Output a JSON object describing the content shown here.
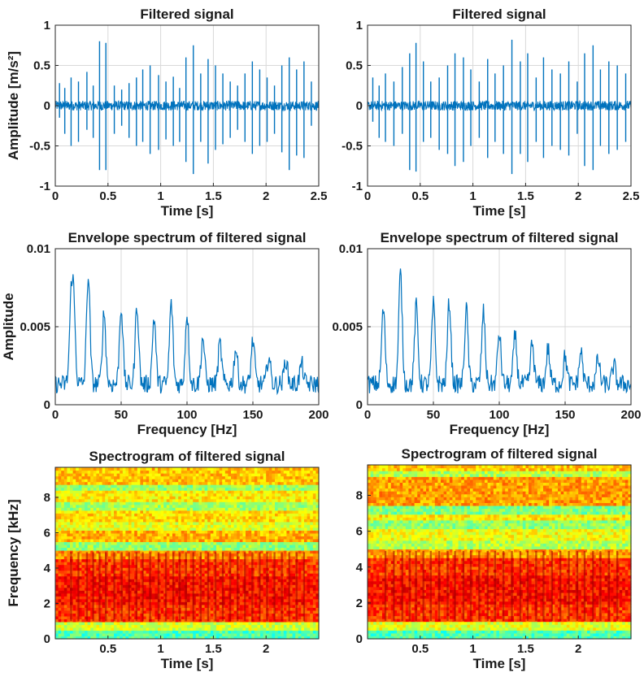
{
  "colors": {
    "line": "#0072BD",
    "axis": "#262626",
    "grid": "#d9d9d9"
  },
  "chart_data": [
    {
      "type": "line",
      "id": "p1",
      "title": "Filtered signal",
      "xlabel": "Time [s]",
      "ylabel": "Amplitude [m/s²]",
      "xlim": [
        0,
        2.5
      ],
      "ylim": [
        -1,
        1
      ],
      "xticks": [
        0,
        0.5,
        1,
        1.5,
        2,
        2.5
      ],
      "xtick_labels": [
        "0",
        "0.5",
        "1",
        "1.5",
        "2",
        "2.5"
      ],
      "yticks": [
        -1,
        -0.5,
        0,
        0.5,
        1
      ],
      "ytick_labels": [
        "-1",
        "-0.5",
        "0",
        "0.5",
        "1"
      ],
      "grid": true,
      "noise_level": 0.06,
      "impulses": {
        "t": [
          0.04,
          0.09,
          0.15,
          0.22,
          0.3,
          0.36,
          0.42,
          0.48,
          0.56,
          0.63,
          0.7,
          0.77,
          0.83,
          0.9,
          0.98,
          1.05,
          1.12,
          1.18,
          1.24,
          1.31,
          1.38,
          1.45,
          1.52,
          1.59,
          1.66,
          1.73,
          1.8,
          1.87,
          1.94,
          2.01,
          2.08,
          2.15,
          2.22,
          2.29,
          2.36,
          2.43
        ],
        "pos": [
          0.28,
          0.22,
          0.35,
          0.3,
          0.42,
          0.25,
          0.8,
          0.78,
          0.25,
          0.2,
          0.28,
          0.35,
          0.45,
          0.5,
          0.38,
          0.3,
          0.36,
          0.22,
          0.6,
          0.75,
          0.4,
          0.58,
          0.5,
          0.4,
          0.3,
          0.25,
          0.4,
          0.55,
          0.45,
          0.35,
          0.25,
          0.5,
          0.6,
          0.45,
          0.55,
          0.3
        ],
        "neg": [
          -0.15,
          -0.35,
          -0.5,
          -0.45,
          -0.3,
          -0.4,
          -0.8,
          -0.8,
          -0.35,
          -0.25,
          -0.4,
          -0.5,
          -0.45,
          -0.6,
          -0.55,
          -0.42,
          -0.5,
          -0.45,
          -0.7,
          -0.85,
          -0.45,
          -0.72,
          -0.55,
          -0.48,
          -0.4,
          -0.3,
          -0.45,
          -0.6,
          -0.5,
          -0.45,
          -0.35,
          -0.58,
          -0.8,
          -0.62,
          -0.65,
          -0.25
        ]
      }
    },
    {
      "type": "line",
      "id": "p2",
      "title": "Filtered signal",
      "xlabel": "Time [s]",
      "ylabel": "",
      "xlim": [
        0,
        2.5
      ],
      "ylim": [
        -1,
        1
      ],
      "xticks": [
        0,
        0.5,
        1,
        1.5,
        2,
        2.5
      ],
      "xtick_labels": [
        "0",
        "0.5",
        "1",
        "1.5",
        "2",
        "2.5"
      ],
      "yticks": [
        -1,
        -0.5,
        0,
        0.5,
        1
      ],
      "ytick_labels": [
        "-1",
        "-0.5",
        "0",
        "0.5",
        "1"
      ],
      "grid": true,
      "noise_level": 0.06,
      "impulses": {
        "t": [
          0.05,
          0.11,
          0.17,
          0.25,
          0.33,
          0.4,
          0.46,
          0.53,
          0.6,
          0.68,
          0.76,
          0.83,
          0.91,
          0.98,
          1.06,
          1.14,
          1.21,
          1.29,
          1.37,
          1.45,
          1.52,
          1.6,
          1.67,
          1.75,
          1.83,
          1.91,
          1.99,
          2.06,
          2.14,
          2.21,
          2.29,
          2.37,
          2.45
        ],
        "pos": [
          0.35,
          0.25,
          0.4,
          0.3,
          0.48,
          0.65,
          0.78,
          0.55,
          0.3,
          0.35,
          0.5,
          0.65,
          0.6,
          0.45,
          0.3,
          0.58,
          0.4,
          0.5,
          0.82,
          0.55,
          0.65,
          0.35,
          0.6,
          0.45,
          0.4,
          0.55,
          0.3,
          0.65,
          0.75,
          0.45,
          0.55,
          0.5,
          0.4
        ],
        "neg": [
          -0.2,
          -0.4,
          -0.45,
          -0.5,
          -0.35,
          -0.8,
          -0.82,
          -0.45,
          -0.4,
          -0.55,
          -0.6,
          -0.75,
          -0.7,
          -0.5,
          -0.4,
          -0.65,
          -0.45,
          -0.6,
          -0.85,
          -0.6,
          -0.7,
          -0.45,
          -0.65,
          -0.5,
          -0.55,
          -0.62,
          -0.35,
          -0.75,
          -0.8,
          -0.5,
          -0.6,
          -0.55,
          -0.45
        ]
      }
    },
    {
      "type": "line",
      "id": "p3",
      "title": "Envelope spectrum of filtered signal",
      "xlabel": "Frequency [Hz]",
      "ylabel": "Amplitude",
      "xlim": [
        0,
        200
      ],
      "ylim": [
        0,
        0.01
      ],
      "xticks": [
        0,
        50,
        100,
        150,
        200
      ],
      "xtick_labels": [
        "0",
        "50",
        "100",
        "150",
        "200"
      ],
      "yticks": [
        0,
        0.005,
        0.01
      ],
      "ytick_labels": [
        "0",
        "0.005",
        "0.01"
      ],
      "grid": true,
      "baseline": 0.0012,
      "peaks": {
        "f": [
          12,
          14,
          25,
          37,
          50,
          62,
          75,
          88,
          100,
          112,
          125,
          137,
          150,
          162,
          175,
          187
        ],
        "a": [
          0.006,
          0.0058,
          0.0082,
          0.0058,
          0.0062,
          0.0063,
          0.0055,
          0.0064,
          0.0058,
          0.0042,
          0.0038,
          0.0035,
          0.004,
          0.003,
          0.0028,
          0.0025
        ]
      }
    },
    {
      "type": "line",
      "id": "p4",
      "title": "Envelope spectrum of filtered signal",
      "xlabel": "Frequency [Hz]",
      "ylabel": "",
      "xlim": [
        0,
        200
      ],
      "ylim": [
        0,
        0.01
      ],
      "xticks": [
        0,
        50,
        100,
        150,
        200
      ],
      "xtick_labels": [
        "0",
        "50",
        "100",
        "150",
        "200"
      ],
      "yticks": [
        0,
        0.005,
        0.01
      ],
      "ytick_labels": [
        "0",
        "0.005",
        "0.01"
      ],
      "grid": true,
      "baseline": 0.0012,
      "peaks": {
        "f": [
          12,
          25,
          37,
          50,
          62,
          75,
          88,
          100,
          112,
          125,
          137,
          150,
          162,
          175,
          187
        ],
        "a": [
          0.006,
          0.0083,
          0.0062,
          0.0063,
          0.0065,
          0.006,
          0.0058,
          0.0045,
          0.0043,
          0.0038,
          0.0035,
          0.003,
          0.0033,
          0.0028,
          0.0024
        ]
      }
    },
    {
      "type": "heatmap",
      "id": "p5",
      "title": "Spectrogram of filtered signal",
      "xlabel": "Time [s]",
      "ylabel": "Frequency [kHz]",
      "xlim": [
        0,
        2.5
      ],
      "ylim": [
        0,
        9.7
      ],
      "xticks": [
        0.5,
        1,
        1.5,
        2
      ],
      "xtick_labels": [
        "0.5",
        "1",
        "1.5",
        "2"
      ],
      "yticks": [
        0,
        2,
        4,
        6,
        8
      ],
      "ytick_labels": [
        "0",
        "2",
        "4",
        "6",
        "8"
      ],
      "grid": false,
      "colormap": "jet",
      "bands": [
        {
          "f0": 0.0,
          "f1": 0.5,
          "level": 0.45
        },
        {
          "f0": 0.5,
          "f1": 1.0,
          "level": 0.58
        },
        {
          "f0": 1.0,
          "f1": 2.0,
          "level": 0.82
        },
        {
          "f0": 2.0,
          "f1": 3.5,
          "level": 0.86
        },
        {
          "f0": 3.5,
          "f1": 4.6,
          "level": 0.82
        },
        {
          "f0": 4.6,
          "f1": 5.0,
          "level": 0.74
        },
        {
          "f0": 5.0,
          "f1": 5.5,
          "level": 0.52
        },
        {
          "f0": 5.5,
          "f1": 6.2,
          "level": 0.7
        },
        {
          "f0": 6.2,
          "f1": 6.6,
          "level": 0.6
        },
        {
          "f0": 6.6,
          "f1": 7.3,
          "level": 0.66
        },
        {
          "f0": 7.3,
          "f1": 7.7,
          "level": 0.54
        },
        {
          "f0": 7.7,
          "f1": 8.4,
          "level": 0.64
        },
        {
          "f0": 8.4,
          "f1": 8.8,
          "level": 0.52
        },
        {
          "f0": 8.8,
          "f1": 9.7,
          "level": 0.68
        }
      ],
      "impulse_times": [
        0.15,
        0.22,
        0.3,
        0.36,
        0.42,
        0.48,
        0.56,
        0.63,
        0.7,
        0.77,
        0.83,
        0.9,
        0.98,
        1.05,
        1.12,
        1.18,
        1.24,
        1.31,
        1.38,
        1.45,
        1.52,
        1.59,
        1.66,
        1.73,
        1.8,
        1.87,
        1.94,
        2.01,
        2.08,
        2.15,
        2.22,
        2.29,
        2.36
      ]
    },
    {
      "type": "heatmap",
      "id": "p6",
      "title": "Spectrogram of filtered signal",
      "xlabel": "Time [s]",
      "ylabel": "",
      "xlim": [
        0,
        2.5
      ],
      "ylim": [
        0,
        9.7
      ],
      "xticks": [
        0.5,
        1,
        1.5,
        2
      ],
      "xtick_labels": [
        "0.5",
        "1",
        "1.5",
        "2"
      ],
      "yticks": [
        0,
        2,
        4,
        6,
        8
      ],
      "ytick_labels": [
        "0",
        "2",
        "4",
        "6",
        "8"
      ],
      "grid": false,
      "colormap": "jet",
      "bands": [
        {
          "f0": 0.0,
          "f1": 0.5,
          "level": 0.45
        },
        {
          "f0": 0.5,
          "f1": 1.0,
          "level": 0.6
        },
        {
          "f0": 1.0,
          "f1": 2.0,
          "level": 0.82
        },
        {
          "f0": 2.0,
          "f1": 3.5,
          "level": 0.86
        },
        {
          "f0": 3.5,
          "f1": 4.6,
          "level": 0.82
        },
        {
          "f0": 4.6,
          "f1": 5.0,
          "level": 0.72
        },
        {
          "f0": 5.0,
          "f1": 5.5,
          "level": 0.55
        },
        {
          "f0": 5.5,
          "f1": 6.2,
          "level": 0.62
        },
        {
          "f0": 6.2,
          "f1": 6.6,
          "level": 0.52
        },
        {
          "f0": 6.6,
          "f1": 7.0,
          "level": 0.64
        },
        {
          "f0": 7.0,
          "f1": 7.4,
          "level": 0.5
        },
        {
          "f0": 7.4,
          "f1": 9.0,
          "level": 0.72
        },
        {
          "f0": 9.0,
          "f1": 9.3,
          "level": 0.55
        },
        {
          "f0": 9.3,
          "f1": 9.7,
          "level": 0.68
        }
      ],
      "impulse_times": [
        0.17,
        0.25,
        0.33,
        0.4,
        0.46,
        0.53,
        0.6,
        0.68,
        0.76,
        0.83,
        0.91,
        0.98,
        1.06,
        1.14,
        1.21,
        1.29,
        1.37,
        1.45,
        1.52,
        1.6,
        1.67,
        1.75,
        1.83,
        1.91,
        1.99,
        2.06,
        2.14,
        2.21,
        2.29,
        2.37
      ]
    }
  ]
}
